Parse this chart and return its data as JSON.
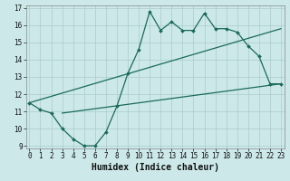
{
  "title": "",
  "xlabel": "Humidex (Indice chaleur)",
  "bg_color": "#cce8e8",
  "line_color": "#1a6b5a",
  "x_min": 0,
  "x_max": 23,
  "y_min": 9,
  "y_max": 17,
  "jagged_x": [
    0,
    1,
    2,
    3,
    4,
    5,
    6,
    7,
    8,
    9,
    10,
    11,
    12,
    13,
    14,
    15,
    16,
    17,
    18,
    19,
    20,
    21,
    22,
    23
  ],
  "jagged_y": [
    11.5,
    11.1,
    10.9,
    10.0,
    9.4,
    9.0,
    9.0,
    9.8,
    11.3,
    13.2,
    14.6,
    16.8,
    15.7,
    16.2,
    15.7,
    15.7,
    16.7,
    15.8,
    15.8,
    15.6,
    14.8,
    14.2,
    12.6,
    12.6
  ],
  "line1_x": [
    0,
    23
  ],
  "line1_y": [
    11.5,
    15.8
  ],
  "line2_x": [
    3,
    23
  ],
  "line2_y": [
    10.9,
    12.6
  ],
  "grid_color": "#aacccc",
  "tick_fontsize": 5.5,
  "label_fontsize": 7.0
}
